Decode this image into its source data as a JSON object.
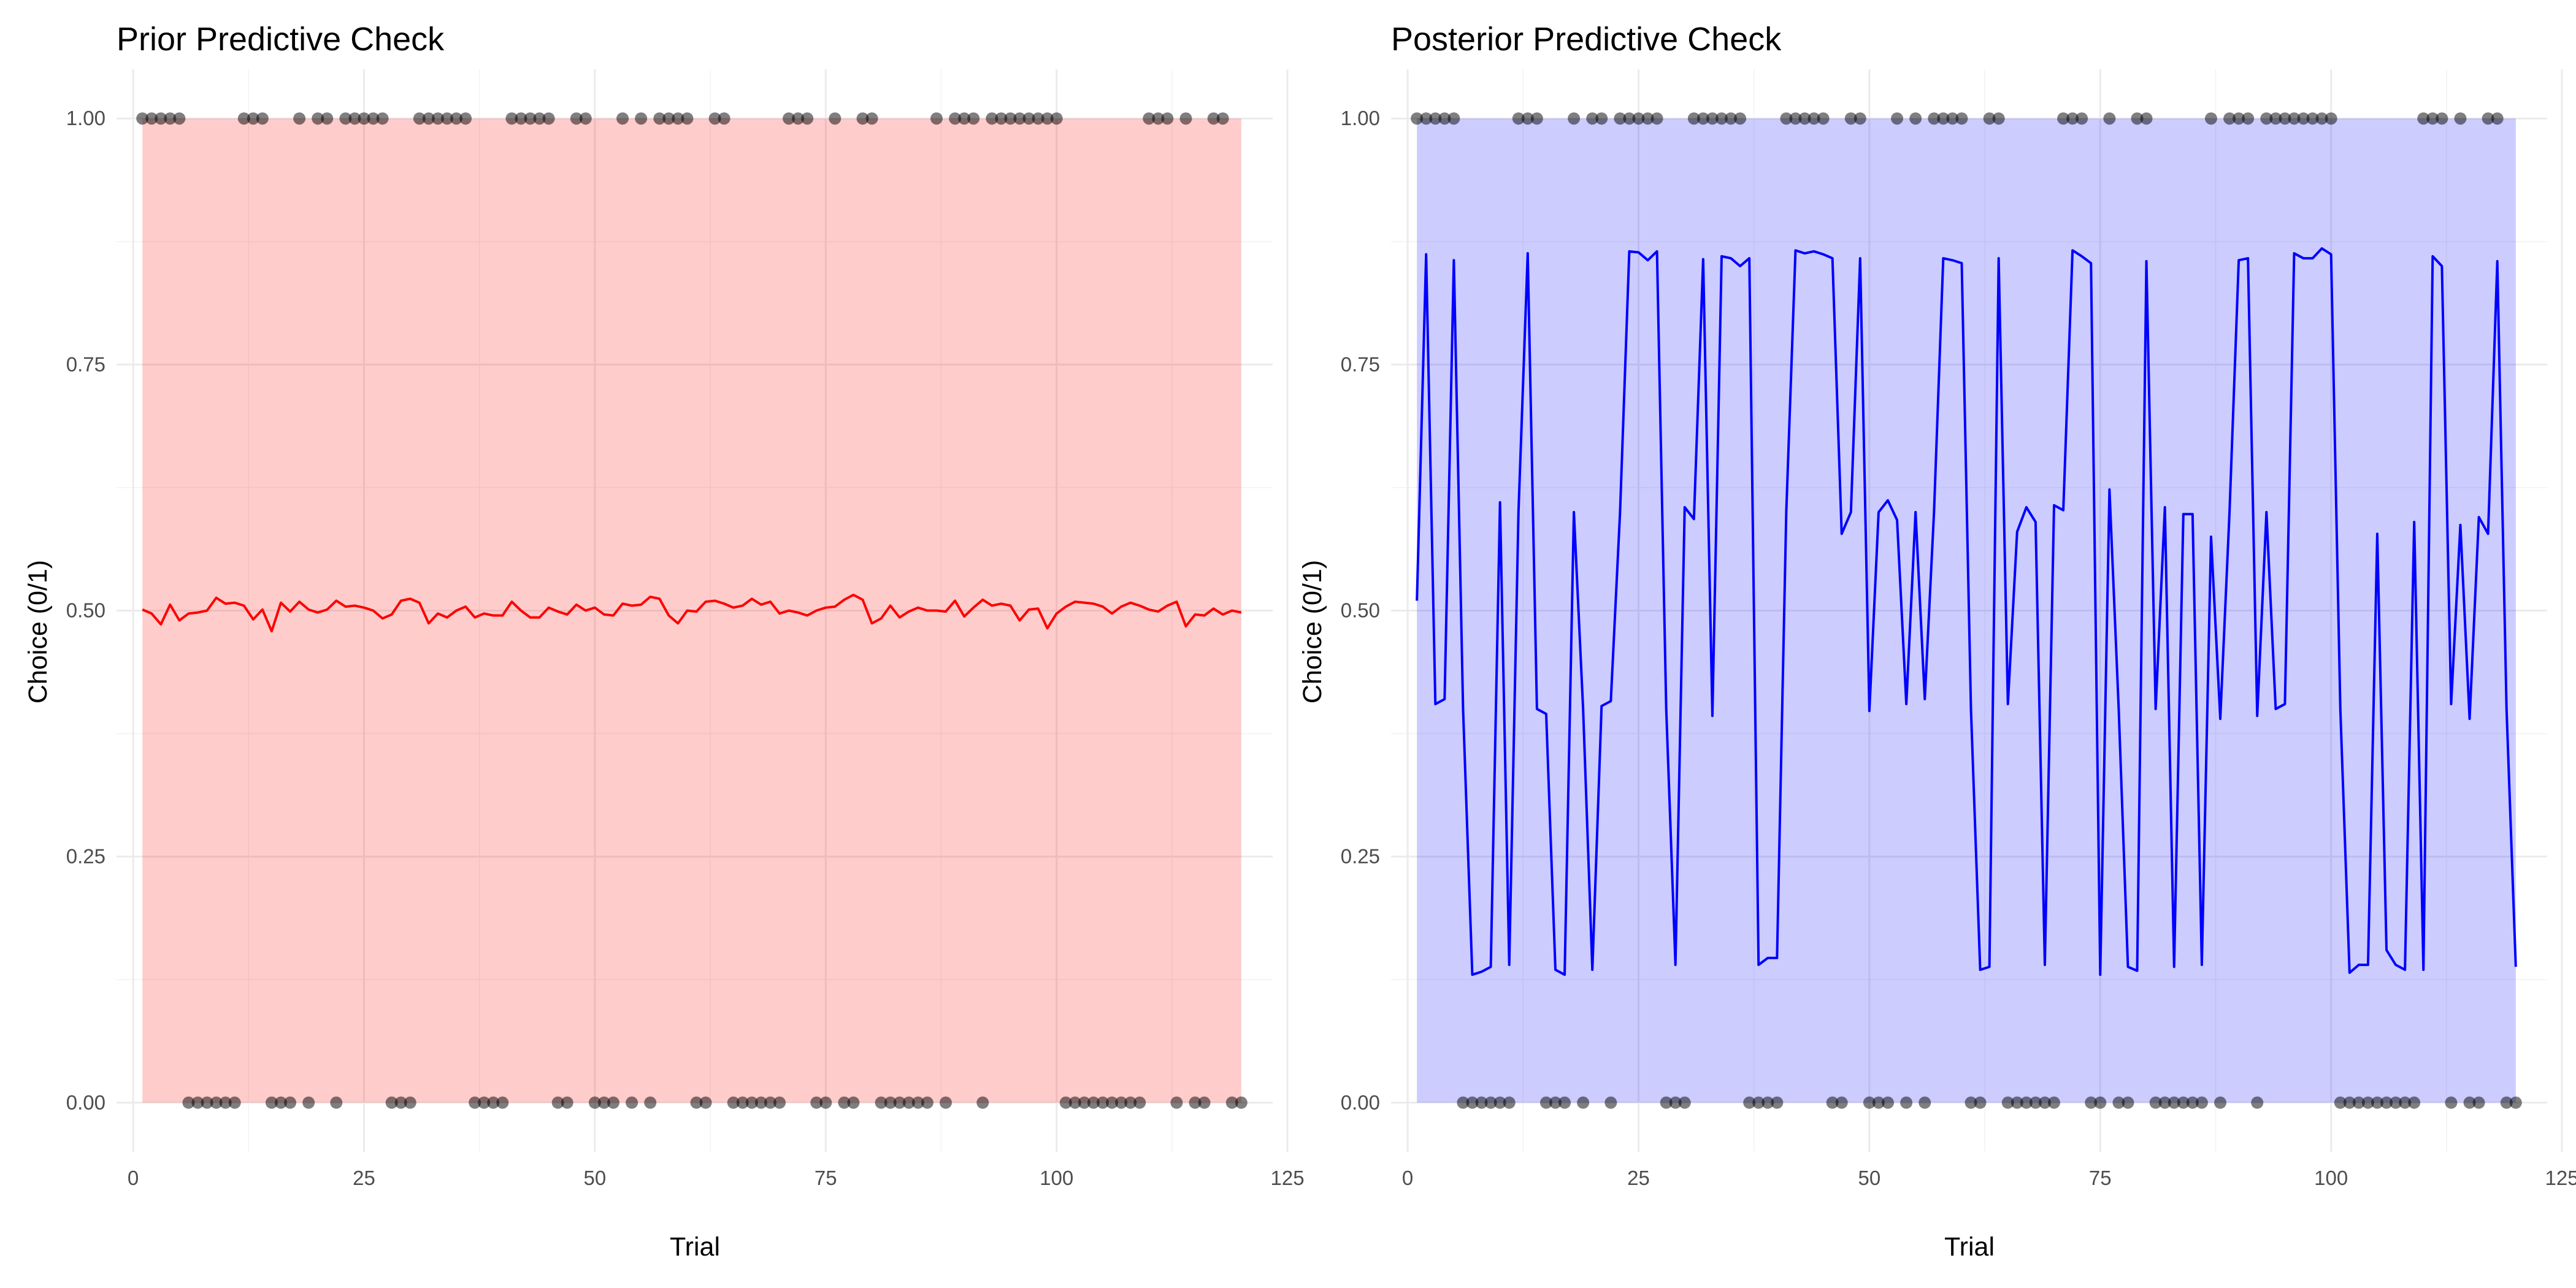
{
  "chart_data": [
    {
      "type": "line",
      "title": "Prior Predictive Check",
      "xlabel": "Trial",
      "ylabel": "Choice (0/1)",
      "xlim": [
        -1.8,
        123.4
      ],
      "ylim": [
        -0.05,
        1.05
      ],
      "xticks": [
        0,
        25,
        50,
        75,
        100,
        125
      ],
      "xtick_labels": [
        "0",
        "25",
        "50",
        "75",
        "100",
        "125"
      ],
      "yticks": [
        0,
        0.25,
        0.5,
        0.75,
        1
      ],
      "ytick_labels": [
        "0.00",
        "0.25",
        "0.50",
        "0.75",
        "1.00"
      ],
      "grid": true,
      "legend": "none",
      "line_color": "#ff0000",
      "ribbon_color": "#ff0000",
      "ribbon_opacity": 0.2,
      "point_color": "#000000",
      "point_opacity": 0.5,
      "ribbon": {
        "x_start": 1,
        "x_end": 120,
        "lower": 0,
        "upper": 1
      },
      "series": [
        {
          "kind": "mean-line",
          "values": [
            0.501,
            0.497,
            0.486,
            0.506,
            0.49,
            0.497,
            0.498,
            0.5,
            0.513,
            0.507,
            0.508,
            0.505,
            0.491,
            0.501,
            0.479,
            0.508,
            0.499,
            0.509,
            0.501,
            0.498,
            0.501,
            0.51,
            0.504,
            0.505,
            0.503,
            0.5,
            0.492,
            0.496,
            0.51,
            0.512,
            0.508,
            0.487,
            0.497,
            0.493,
            0.5,
            0.504,
            0.493,
            0.497,
            0.495,
            0.495,
            0.509,
            0.5,
            0.493,
            0.493,
            0.503,
            0.499,
            0.496,
            0.506,
            0.5,
            0.503,
            0.496,
            0.495,
            0.507,
            0.505,
            0.506,
            0.514,
            0.512,
            0.495,
            0.487,
            0.5,
            0.499,
            0.509,
            0.51,
            0.507,
            0.503,
            0.505,
            0.512,
            0.506,
            0.509,
            0.497,
            0.5,
            0.498,
            0.495,
            0.5,
            0.503,
            0.504,
            0.511,
            0.516,
            0.511,
            0.487,
            0.492,
            0.505,
            0.493,
            0.499,
            0.503,
            0.5,
            0.5,
            0.499,
            0.51,
            0.494,
            0.503,
            0.511,
            0.505,
            0.507,
            0.505,
            0.49,
            0.501,
            0.502,
            0.482,
            0.497,
            0.504,
            0.509,
            0.508,
            0.507,
            0.504,
            0.497,
            0.504,
            0.508,
            0.505,
            0.501,
            0.499,
            0.505,
            0.509,
            0.484,
            0.496,
            0.495,
            0.502,
            0.496,
            0.5,
            0.498
          ]
        },
        {
          "kind": "observed-points",
          "values": [
            1,
            1,
            1,
            1,
            1,
            0,
            0,
            0,
            0,
            0,
            0,
            1,
            1,
            1,
            0,
            0,
            0,
            1,
            0,
            1,
            1,
            0,
            1,
            1,
            1,
            1,
            1,
            0,
            0,
            0,
            1,
            1,
            1,
            1,
            1,
            1,
            0,
            0,
            0,
            0,
            1,
            1,
            1,
            1,
            1,
            0,
            0,
            1,
            1,
            0,
            0,
            0,
            1,
            0,
            1,
            0,
            1,
            1,
            1,
            1,
            0,
            0,
            1,
            1,
            0,
            0,
            0,
            0,
            0,
            0,
            1,
            1,
            1,
            0,
            0,
            1,
            0,
            0,
            1,
            1,
            0,
            0,
            0,
            0,
            0,
            0,
            1,
            0,
            1,
            1,
            1,
            0,
            1,
            1,
            1,
            1,
            1,
            1,
            1,
            1,
            0,
            0,
            0,
            0,
            0,
            0,
            0,
            0,
            0,
            1,
            1,
            1,
            0,
            1,
            0,
            0,
            1,
            1,
            0,
            0
          ]
        }
      ]
    },
    {
      "type": "line",
      "title": "Posterior Predictive Check",
      "xlabel": "Trial",
      "ylabel": "Choice (0/1)",
      "xlim": [
        -1.8,
        123.4
      ],
      "ylim": [
        -0.05,
        1.05
      ],
      "xticks": [
        0,
        25,
        50,
        75,
        100,
        125
      ],
      "xtick_labels": [
        "0",
        "25",
        "50",
        "75",
        "100",
        "125"
      ],
      "yticks": [
        0,
        0.25,
        0.5,
        0.75,
        1
      ],
      "ytick_labels": [
        "0.00",
        "0.25",
        "0.50",
        "0.75",
        "1.00"
      ],
      "grid": true,
      "legend": "none",
      "line_color": "#0000ff",
      "ribbon_color": "#0000ff",
      "ribbon_opacity": 0.2,
      "point_color": "#000000",
      "point_opacity": 0.5,
      "ribbon": {
        "x_start": 1,
        "x_end": 120,
        "lower": 0,
        "upper": 1
      },
      "series": [
        {
          "kind": "mean-line",
          "values": [
            0.51,
            0.862,
            0.405,
            0.41,
            0.856,
            0.4,
            0.13,
            0.133,
            0.138,
            0.61,
            0.14,
            0.6,
            0.863,
            0.4,
            0.395,
            0.135,
            0.13,
            0.6,
            0.4,
            0.135,
            0.403,
            0.408,
            0.6,
            0.865,
            0.864,
            0.856,
            0.865,
            0.4,
            0.14,
            0.605,
            0.593,
            0.857,
            0.393,
            0.86,
            0.858,
            0.85,
            0.858,
            0.14,
            0.147,
            0.147,
            0.6,
            0.866,
            0.863,
            0.865,
            0.862,
            0.858,
            0.578,
            0.6,
            0.858,
            0.398,
            0.6,
            0.612,
            0.592,
            0.405,
            0.6,
            0.41,
            0.6,
            0.858,
            0.856,
            0.853,
            0.4,
            0.135,
            0.138,
            0.858,
            0.405,
            0.58,
            0.605,
            0.59,
            0.14,
            0.607,
            0.602,
            0.866,
            0.86,
            0.853,
            0.13,
            0.623,
            0.4,
            0.138,
            0.134,
            0.855,
            0.4,
            0.605,
            0.138,
            0.598,
            0.598,
            0.14,
            0.575,
            0.39,
            0.6,
            0.856,
            0.858,
            0.393,
            0.6,
            0.4,
            0.405,
            0.863,
            0.858,
            0.858,
            0.868,
            0.862,
            0.4,
            0.132,
            0.14,
            0.14,
            0.578,
            0.155,
            0.14,
            0.135,
            0.59,
            0.135,
            0.86,
            0.85,
            0.405,
            0.587,
            0.39,
            0.595,
            0.578,
            0.855,
            0.4,
            0.138
          ]
        },
        {
          "kind": "observed-points",
          "values": [
            1,
            1,
            1,
            1,
            1,
            0,
            0,
            0,
            0,
            0,
            0,
            1,
            1,
            1,
            0,
            0,
            0,
            1,
            0,
            1,
            1,
            0,
            1,
            1,
            1,
            1,
            1,
            0,
            0,
            0,
            1,
            1,
            1,
            1,
            1,
            1,
            0,
            0,
            0,
            0,
            1,
            1,
            1,
            1,
            1,
            0,
            0,
            1,
            1,
            0,
            0,
            0,
            1,
            0,
            1,
            0,
            1,
            1,
            1,
            1,
            0,
            0,
            1,
            1,
            0,
            0,
            0,
            0,
            0,
            0,
            1,
            1,
            1,
            0,
            0,
            1,
            0,
            0,
            1,
            1,
            0,
            0,
            0,
            0,
            0,
            0,
            1,
            0,
            1,
            1,
            1,
            0,
            1,
            1,
            1,
            1,
            1,
            1,
            1,
            1,
            0,
            0,
            0,
            0,
            0,
            0,
            0,
            0,
            0,
            1,
            1,
            1,
            0,
            1,
            0,
            0,
            1,
            1,
            0,
            0
          ]
        }
      ]
    }
  ]
}
